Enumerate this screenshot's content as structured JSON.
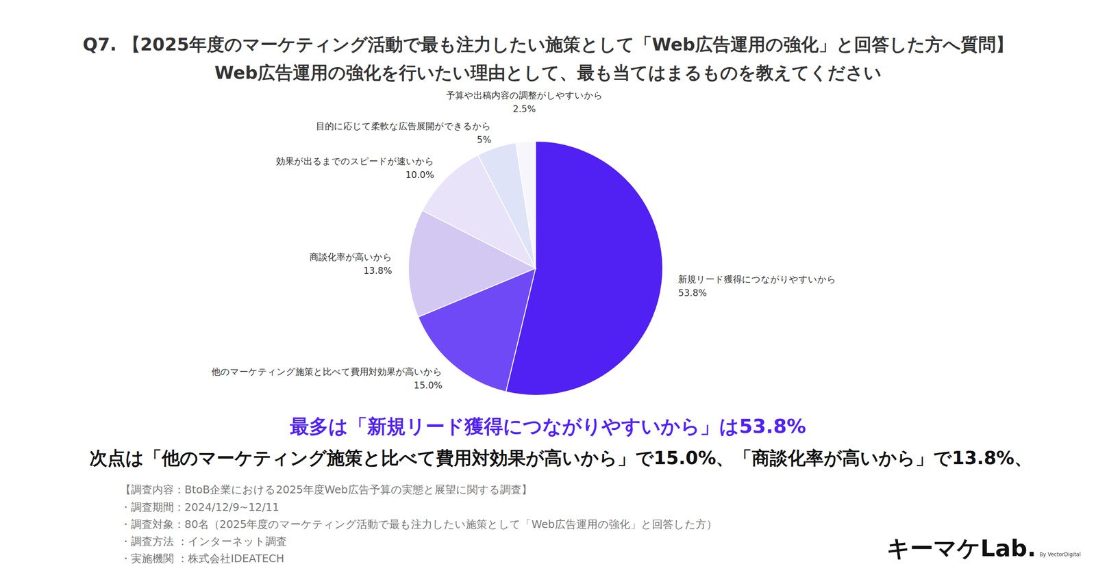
{
  "chart_data": {
    "type": "pie",
    "title": "Q7. 【2025年度のマーケティング活動で最も注力したい施策として「Web広告運用の強化」と回答した方へ質問】",
    "subtitle": "Web広告運用の強化を行いたい理由として、最も当てはまるものを教えてください",
    "categories": [
      "新規リード獲得につながりやすいから",
      "他のマーケティング施策と比べて費用対効果が高いから",
      "商談化率が高いから",
      "効果が出るまでのスピードが速いから",
      "目的に応じて柔軟な広告展開ができるから",
      "予算や出稿内容の調整がしやすいから"
    ],
    "values": [
      53.8,
      15.0,
      13.8,
      10.0,
      5,
      2.5
    ],
    "value_labels": [
      "53.8%",
      "15.0%",
      "13.8%",
      "10.0%",
      "5%",
      "2.5%"
    ],
    "colors": [
      "#5021f2",
      "#7049f6",
      "#d2c8f1",
      "#e8e3f8",
      "#dfe3f8",
      "#f6f6fc"
    ],
    "data_labels": true,
    "annotations": [
      "最多は「新規リード獲得につながりやすいから」は53.8%",
      "次点は「他のマーケティング施策と比べて費用対効果が高いから」で15.0%、「商談化率が高いから」で13.8%、",
      "【調査内容：BtoB企業における2025年度Web広告予算の実態と展望に関する調査】",
      "・調査期間：2024/12/9~12/11",
      "・調査対象：80名（2025年度のマーケティング活動で最も注力したい施策として「Web広告運用の強化」と回答した方）",
      "・調査方法 ：インターネット調査",
      "・実施機関 ：株式会社IDEATECH",
      "キーマケLab.",
      "By VectorDigital"
    ]
  }
}
